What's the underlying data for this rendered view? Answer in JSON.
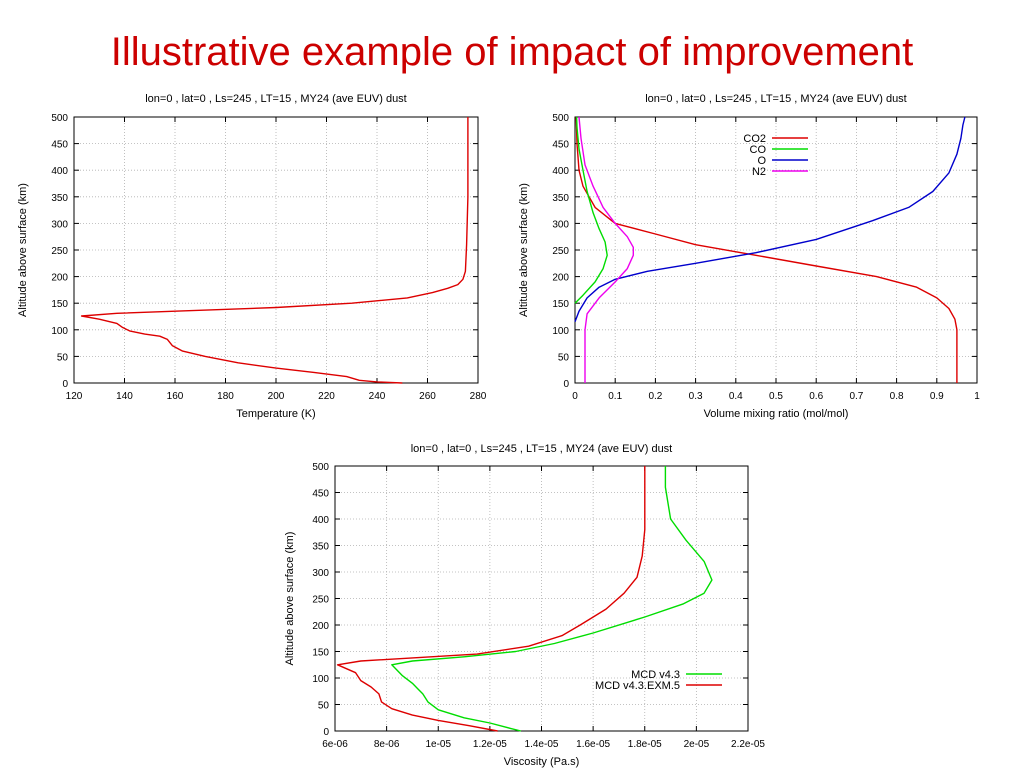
{
  "slide_title": "Illustrative example of impact of improvement",
  "chart_data": [
    {
      "id": "temperature",
      "type": "line",
      "title": "lon=0 , lat=0 , Ls=245 , LT=15 , MY24 (ave EUV) dust",
      "xlabel": "Temperature (K)",
      "ylabel": "Altitude above surface (km)",
      "xlim": [
        120,
        280
      ],
      "ylim": [
        0,
        500
      ],
      "xticks": [
        120,
        140,
        160,
        180,
        200,
        220,
        240,
        260,
        280
      ],
      "xtick_labels": [
        "120",
        "140",
        "160",
        "180",
        "200",
        "220",
        "240",
        "260",
        "280"
      ],
      "yticks": [
        0,
        50,
        100,
        150,
        200,
        250,
        300,
        350,
        400,
        450,
        500
      ],
      "ytick_labels": [
        "0",
        "50",
        "100",
        "150",
        "200",
        "250",
        "300",
        "350",
        "400",
        "450",
        "500"
      ],
      "grid": true,
      "legend": null,
      "series": [
        {
          "color": "#dd0000",
          "x": [
            250,
            240,
            233,
            228,
            215,
            200,
            185,
            172,
            163,
            159,
            157,
            154,
            148,
            142,
            139,
            137,
            130,
            123,
            137,
            160,
            200,
            230,
            252,
            262,
            268,
            272,
            274,
            275,
            275.5,
            276,
            276,
            276
          ],
          "y": [
            0,
            2,
            5,
            12,
            20,
            28,
            38,
            50,
            60,
            70,
            82,
            88,
            92,
            98,
            105,
            112,
            120,
            126,
            131,
            135,
            142,
            150,
            160,
            170,
            178,
            185,
            195,
            210,
            260,
            350,
            430,
            500
          ]
        }
      ]
    },
    {
      "id": "composition",
      "type": "line",
      "title": "lon=0 , lat=0 , Ls=245 , LT=15 , MY24 (ave EUV) dust",
      "xlabel": "Volume mixing ratio (mol/mol)",
      "ylabel": "Altitude above surface (km)",
      "xlim": [
        0,
        1
      ],
      "ylim": [
        0,
        500
      ],
      "xticks": [
        0,
        0.1,
        0.2,
        0.3,
        0.4,
        0.5,
        0.6,
        0.7,
        0.8,
        0.9,
        1
      ],
      "xtick_labels": [
        "0",
        "0.1",
        "0.2",
        "0.3",
        "0.4",
        "0.5",
        "0.6",
        "0.7",
        "0.8",
        "0.9",
        "1"
      ],
      "yticks": [
        0,
        50,
        100,
        150,
        200,
        250,
        300,
        350,
        400,
        450,
        500
      ],
      "ytick_labels": [
        "0",
        "50",
        "100",
        "150",
        "200",
        "250",
        "300",
        "350",
        "400",
        "450",
        "500"
      ],
      "grid": true,
      "legend": "top-right",
      "series": [
        {
          "name": "CO2",
          "color": "#dd0000",
          "x": [
            0.95,
            0.95,
            0.95,
            0.945,
            0.93,
            0.9,
            0.85,
            0.75,
            0.6,
            0.45,
            0.3,
            0.2,
            0.1,
            0.05,
            0.02,
            0.01,
            0.005,
            0.003
          ],
          "y": [
            0,
            50,
            100,
            120,
            140,
            160,
            180,
            200,
            220,
            240,
            260,
            280,
            300,
            330,
            370,
            400,
            450,
            500
          ]
        },
        {
          "name": "CO",
          "color": "#00dd00",
          "x": [
            0.0,
            0.02,
            0.05,
            0.07,
            0.08,
            0.075,
            0.06,
            0.045,
            0.03,
            0.02,
            0.01,
            0.005,
            0.004
          ],
          "y": [
            150,
            165,
            190,
            215,
            240,
            265,
            290,
            320,
            360,
            400,
            440,
            480,
            500
          ]
        },
        {
          "name": "O",
          "color": "#0000cc",
          "x": [
            0.0,
            0.01,
            0.03,
            0.06,
            0.1,
            0.18,
            0.3,
            0.45,
            0.6,
            0.74,
            0.83,
            0.89,
            0.93,
            0.95,
            0.96,
            0.965,
            0.97
          ],
          "y": [
            115,
            135,
            160,
            180,
            195,
            210,
            225,
            245,
            270,
            305,
            330,
            360,
            395,
            430,
            460,
            485,
            500
          ]
        },
        {
          "name": "N2",
          "color": "#ee00ee",
          "x": [
            0.025,
            0.025,
            0.025,
            0.03,
            0.06,
            0.1,
            0.13,
            0.145,
            0.145,
            0.13,
            0.1,
            0.07,
            0.045,
            0.025,
            0.015,
            0.01
          ],
          "y": [
            0,
            50,
            100,
            130,
            160,
            190,
            215,
            240,
            255,
            275,
            300,
            330,
            370,
            410,
            460,
            500
          ]
        }
      ]
    },
    {
      "id": "viscosity",
      "type": "line",
      "title": "lon=0 , lat=0 , Ls=245 , LT=15 , MY24 (ave EUV) dust",
      "xlabel": "Viscosity (Pa.s)",
      "ylabel": "Altitude above surface (km)",
      "xlim": [
        6e-06,
        2.2e-05
      ],
      "ylim": [
        0,
        500
      ],
      "xticks": [
        6e-06,
        8e-06,
        1e-05,
        1.2e-05,
        1.4e-05,
        1.6e-05,
        1.8e-05,
        2e-05,
        2.2e-05
      ],
      "xtick_labels": [
        "6e-06",
        "8e-06",
        "1e-05",
        "1.2e-05",
        "1.4e-05",
        "1.6e-05",
        "1.8e-05",
        "2e-05",
        "2.2e-05"
      ],
      "yticks": [
        0,
        50,
        100,
        150,
        200,
        250,
        300,
        350,
        400,
        450,
        500
      ],
      "ytick_labels": [
        "0",
        "50",
        "100",
        "150",
        "200",
        "250",
        "300",
        "350",
        "400",
        "450",
        "500"
      ],
      "grid": true,
      "legend": "bottom-right",
      "series": [
        {
          "name": "MCD v4.3",
          "color": "#00dd00",
          "x": [
            1.32e-05,
            1.28e-05,
            1.2e-05,
            1.1e-05,
            1e-05,
            9.6e-06,
            9.4e-06,
            9.2e-06,
            9e-06,
            8.6e-06,
            8.2e-06,
            9e-06,
            1.1e-05,
            1.3e-05,
            1.45e-05,
            1.6e-05,
            1.8e-05,
            1.95e-05,
            2.03e-05,
            2.06e-05,
            2.03e-05,
            1.96e-05,
            1.9e-05,
            1.88e-05,
            1.88e-05
          ],
          "y": [
            0,
            5,
            15,
            25,
            40,
            55,
            70,
            80,
            90,
            105,
            125,
            132,
            140,
            150,
            165,
            185,
            215,
            240,
            260,
            285,
            320,
            360,
            400,
            460,
            500
          ]
        },
        {
          "name": "MCD v4.3.EXM.5",
          "color": "#dd0000",
          "x": [
            1.23e-05,
            1.12e-05,
            1e-05,
            9e-06,
            8.2e-06,
            7.8e-06,
            7.7e-06,
            7.4e-06,
            7e-06,
            6.8e-06,
            6.1e-06,
            7e-06,
            9e-06,
            1.15e-05,
            1.35e-05,
            1.48e-05,
            1.55e-05,
            1.65e-05,
            1.72e-05,
            1.77e-05,
            1.79e-05,
            1.8e-05,
            1.8e-05,
            1.8e-05
          ],
          "y": [
            0,
            10,
            20,
            30,
            42,
            55,
            70,
            83,
            95,
            110,
            125,
            132,
            138,
            145,
            160,
            180,
            200,
            230,
            260,
            290,
            330,
            380,
            440,
            500
          ]
        }
      ]
    }
  ]
}
